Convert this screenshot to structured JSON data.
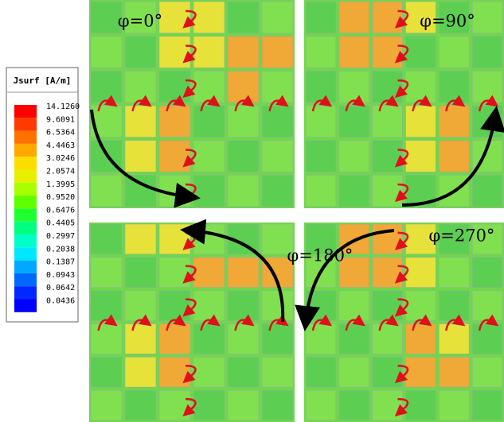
{
  "legend": {
    "title": "Jsurf [A/m]",
    "entries": [
      {
        "label": "14.1260",
        "color": "#ff0000"
      },
      {
        "label": "9.6091",
        "color": "#ff3a00"
      },
      {
        "label": "6.5364",
        "color": "#ff7000"
      },
      {
        "label": "4.4463",
        "color": "#ffa800"
      },
      {
        "label": "3.0246",
        "color": "#ffdc00"
      },
      {
        "label": "2.0574",
        "color": "#e8f000"
      },
      {
        "label": "1.3995",
        "color": "#a8ff00"
      },
      {
        "label": "0.9520",
        "color": "#60ff00"
      },
      {
        "label": "0.6476",
        "color": "#20ff30"
      },
      {
        "label": "0.4405",
        "color": "#00ff80"
      },
      {
        "label": "0.2997",
        "color": "#00ffc8"
      },
      {
        "label": "0.2038",
        "color": "#00e8ff"
      },
      {
        "label": "0.1387",
        "color": "#00a8ff"
      },
      {
        "label": "0.0943",
        "color": "#0068ff"
      },
      {
        "label": "0.0642",
        "color": "#0028ff"
      },
      {
        "label": "0.0436",
        "color": "#0000ff"
      }
    ]
  },
  "panels": [
    {
      "label": "φ=0°"
    },
    {
      "label": "φ=90°"
    },
    {
      "label": "φ=180°"
    },
    {
      "label": "φ=270°"
    }
  ]
}
